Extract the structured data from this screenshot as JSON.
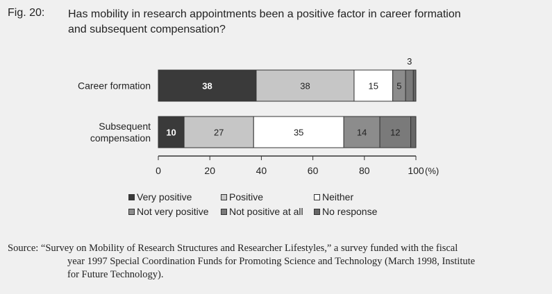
{
  "figure": {
    "number": "Fig. 20:",
    "title_line1": "Has mobility in research appointments been a positive factor in career formation",
    "title_line2": "and subsequent compensation?"
  },
  "chart_data": {
    "type": "bar",
    "orientation": "horizontal",
    "stacked": true,
    "categories": [
      "Career formation",
      "Subsequent compensation"
    ],
    "category_lines": [
      [
        "Career formation"
      ],
      [
        "Subsequent",
        "compensation"
      ]
    ],
    "series": [
      {
        "name": "Very positive",
        "values": [
          38,
          10
        ],
        "color": "#3a3a3a",
        "label_color": "#ffffff"
      },
      {
        "name": "Positive",
        "values": [
          38,
          27
        ],
        "color": "#c6c6c6",
        "label_color": "#222222"
      },
      {
        "name": "Neither",
        "values": [
          15,
          35
        ],
        "color": "#ffffff",
        "label_color": "#222222"
      },
      {
        "name": "Not very positive",
        "values": [
          5,
          14
        ],
        "color": "#8c8c8c",
        "label_color": "#222222"
      },
      {
        "name": "Not positive at all",
        "values": [
          3,
          12
        ],
        "color": "#7a7a7a",
        "label_color": "#222222"
      },
      {
        "name": "No response",
        "values": [
          1,
          2
        ],
        "color": "#666666",
        "label_color": "#222222"
      }
    ],
    "data_labels": [
      [
        "38",
        "38",
        "15",
        "5",
        "",
        ""
      ],
      [
        "10",
        "27",
        "35",
        "14",
        "12",
        ""
      ]
    ],
    "callout": {
      "text": "3",
      "row": 0,
      "series": 4
    },
    "xlim": [
      0,
      100
    ],
    "x_ticks": [
      0,
      20,
      40,
      60,
      80,
      100
    ],
    "x_tick_labels": [
      "0",
      "20",
      "40",
      "60",
      "80",
      "100"
    ],
    "x_unit": "(%)",
    "legend_position": "bottom",
    "grid": false
  },
  "legend": {
    "row1": [
      "Very positive",
      "Positive",
      "Neither"
    ],
    "row2": [
      "Not very positive",
      "Not positive at all",
      "No response"
    ]
  },
  "source": {
    "line1": "Source: “Survey on Mobility of Research Structures and Researcher Lifestyles,” a survey funded with the fiscal",
    "line2": "year 1997 Special Coordination Funds for Promoting Science and Technology (March 1998, Institute",
    "line3": "for Future Technology)."
  }
}
